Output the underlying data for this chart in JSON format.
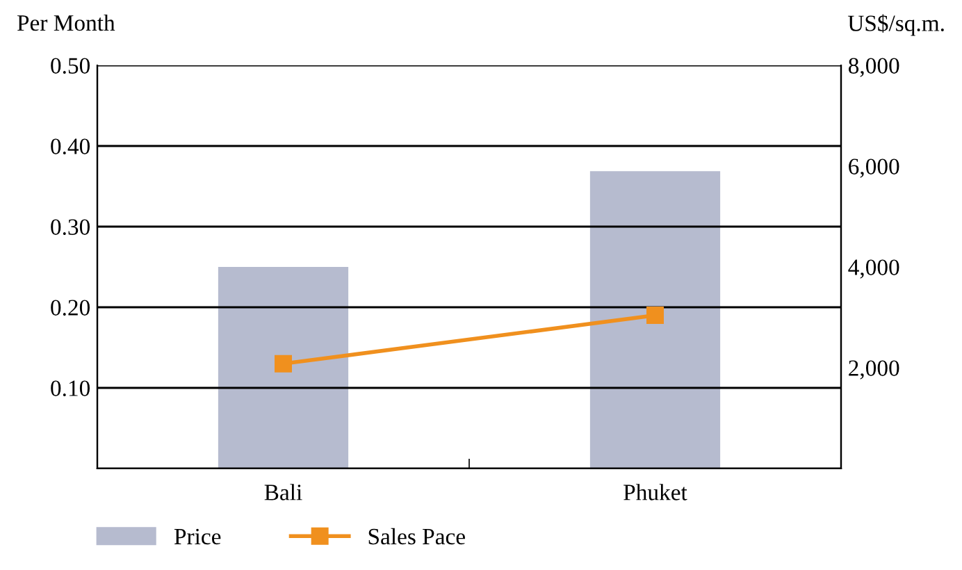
{
  "chart_data": {
    "type": "bar",
    "categories": [
      "Bali",
      "Phuket"
    ],
    "ylabel": "Per Month",
    "y2label": "US$/sq.m.",
    "ylim": [
      0,
      0.5
    ],
    "yticks": [
      {
        "value": 0,
        "label": null
      },
      {
        "value": 0.1,
        "label": "0.10"
      },
      {
        "value": 0.2,
        "label": "0.20"
      },
      {
        "value": 0.3,
        "label": "0.30"
      },
      {
        "value": 0.4,
        "label": "0.40"
      },
      {
        "value": 0.5,
        "label": "0.50"
      }
    ],
    "y2lim": [
      0,
      8000
    ],
    "y2ticks": [
      {
        "value": 0,
        "label": null
      },
      {
        "value": 2000,
        "label": "2,000"
      },
      {
        "value": 4000,
        "label": "4,000"
      },
      {
        "value": 6000,
        "label": "6,000"
      },
      {
        "value": 8000,
        "label": "8,000"
      }
    ],
    "series": [
      {
        "name": "Price",
        "axis": "y2",
        "color": "#b6bbcf",
        "values": [
          4000,
          5900
        ]
      },
      {
        "name": "Sales Pace",
        "type": "line",
        "axis": "y",
        "color": "#f0901e",
        "marker": "square",
        "values": [
          0.13,
          0.19
        ]
      }
    ],
    "grid": "y",
    "legend": "bottom"
  }
}
